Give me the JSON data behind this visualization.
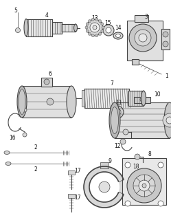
{
  "bg_color": "#ffffff",
  "line_color": "#444444",
  "label_fontsize": 5.5,
  "label_color": "#111111",
  "fig_w": 2.49,
  "fig_h": 3.2,
  "dpi": 100
}
